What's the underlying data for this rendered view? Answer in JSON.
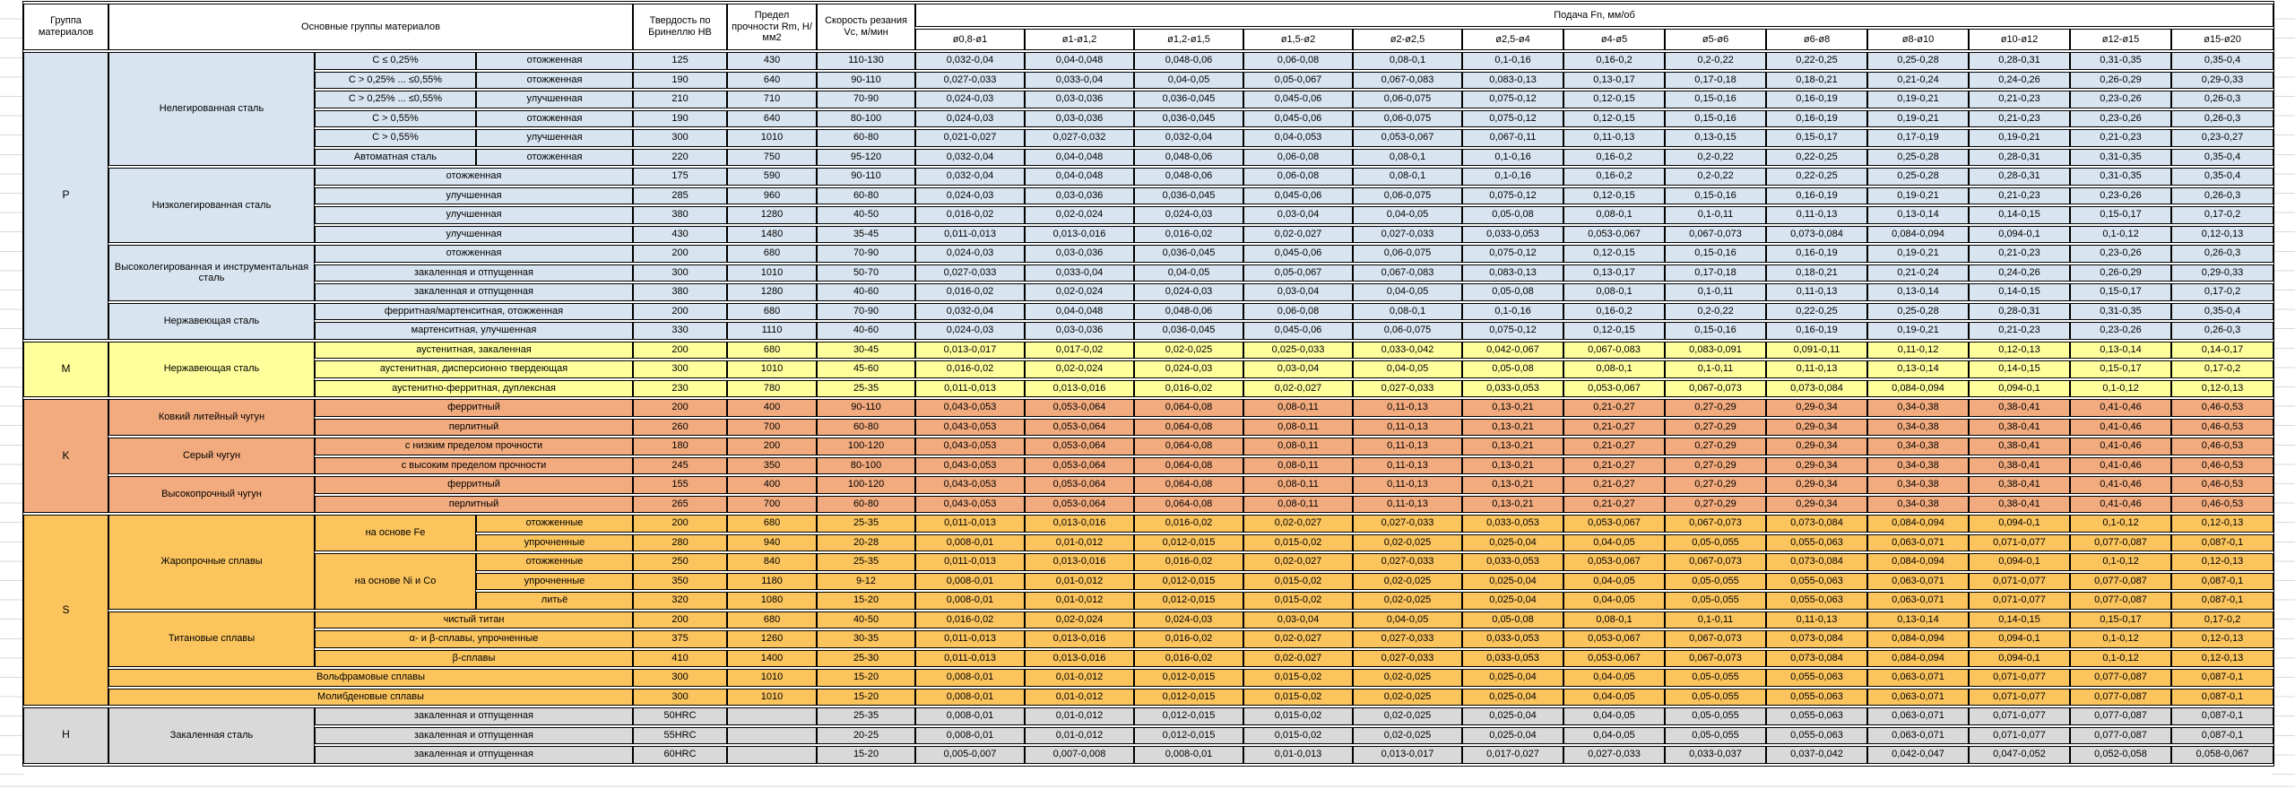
{
  "table": {
    "headers": {
      "group": "Группа материалов",
      "materials": "Основные группы материалов",
      "hardness": "Твердость по Бринеллю HB",
      "strength": "Предел прочности Rm, Н/мм2",
      "speed": "Скорость резания Vc, м/мин",
      "feed": "Подача Fn, мм/об",
      "diameters": [
        "ø0,8-ø1",
        "ø1-ø1,2",
        "ø1,2-ø1,5",
        "ø1,5-ø2",
        "ø2-ø2,5",
        "ø2,5-ø4",
        "ø4-ø5",
        "ø5-ø6",
        "ø6-ø8",
        "ø8-ø10",
        "ø10-ø12",
        "ø12-ø15",
        "ø15-ø20"
      ]
    },
    "feed_profiles": {
      "A": [
        "0,032-0,04",
        "0,04-0,048",
        "0,048-0,06",
        "0,06-0,08",
        "0,08-0,1",
        "0,1-0,16",
        "0,16-0,2",
        "0,2-0,22",
        "0,22-0,25",
        "0,25-0,28",
        "0,28-0,31",
        "0,31-0,35",
        "0,35-0,4"
      ],
      "B": [
        "0,027-0,033",
        "0,033-0,04",
        "0,04-0,05",
        "0,05-0,067",
        "0,067-0,083",
        "0,083-0,13",
        "0,13-0,17",
        "0,17-0,18",
        "0,18-0,21",
        "0,21-0,24",
        "0,24-0,26",
        "0,26-0,29",
        "0,29-0,33"
      ],
      "C": [
        "0,024-0,03",
        "0,03-0,036",
        "0,036-0,045",
        "0,045-0,06",
        "0,06-0,075",
        "0,075-0,12",
        "0,12-0,15",
        "0,15-0,16",
        "0,16-0,19",
        "0,19-0,21",
        "0,21-0,23",
        "0,23-0,26",
        "0,26-0,3"
      ],
      "D": [
        "0,021-0,027",
        "0,027-0,032",
        "0,032-0,04",
        "0,04-0,053",
        "0,053-0,067",
        "0,067-0,11",
        "0,11-0,13",
        "0,13-0,15",
        "0,15-0,17",
        "0,17-0,19",
        "0,19-0,21",
        "0,21-0,23",
        "0,23-0,27"
      ],
      "E": [
        "0,016-0,02",
        "0,02-0,024",
        "0,024-0,03",
        "0,03-0,04",
        "0,04-0,05",
        "0,05-0,08",
        "0,08-0,1",
        "0,1-0,11",
        "0,11-0,13",
        "0,13-0,14",
        "0,14-0,15",
        "0,15-0,17",
        "0,17-0,2"
      ],
      "F": [
        "0,011-0,013",
        "0,013-0,016",
        "0,016-0,02",
        "0,02-0,027",
        "0,027-0,033",
        "0,033-0,053",
        "0,053-0,067",
        "0,067-0,073",
        "0,073-0,084",
        "0,084-0,094",
        "0,094-0,1",
        "0,1-0,12",
        "0,12-0,13"
      ],
      "G": [
        "0,013-0,017",
        "0,017-0,02",
        "0,02-0,025",
        "0,025-0,033",
        "0,033-0,042",
        "0,042-0,067",
        "0,067-0,083",
        "0,083-0,091",
        "0,091-0,11",
        "0,11-0,12",
        "0,12-0,13",
        "0,13-0,14",
        "0,14-0,17"
      ],
      "K": [
        "0,043-0,053",
        "0,053-0,064",
        "0,064-0,08",
        "0,08-0,11",
        "0,11-0,13",
        "0,13-0,21",
        "0,21-0,27",
        "0,27-0,29",
        "0,29-0,34",
        "0,34-0,38",
        "0,38-0,41",
        "0,41-0,46",
        "0,46-0,53"
      ],
      "H": [
        "0,008-0,01",
        "0,01-0,012",
        "0,012-0,015",
        "0,015-0,02",
        "0,02-0,025",
        "0,025-0,04",
        "0,04-0,05",
        "0,05-0,055",
        "0,055-0,063",
        "0,063-0,071",
        "0,071-0,077",
        "0,077-0,087",
        "0,087-0,1"
      ],
      "Z": [
        "0,005-0,007",
        "0,007-0,008",
        "0,008-0,01",
        "0,01-0,013",
        "0,013-0,017",
        "0,017-0,027",
        "0,027-0,033",
        "0,033-0,037",
        "0,037-0,042",
        "0,042-0,047",
        "0,047-0,052",
        "0,052-0,058",
        "0,058-0,067"
      ]
    },
    "groups": [
      {
        "code": "P",
        "color": "#D8E4F0",
        "blocks": [
          {
            "name": "Нелегированная сталь",
            "rows": [
              {
                "cells": [
                  {
                    "t": "C ≤ 0,25%"
                  },
                  {
                    "t": "отожженная"
                  }
                ],
                "hb": "125",
                "rm": "430",
                "vc": "110-130",
                "feed": "A"
              },
              {
                "cells": [
                  {
                    "t": "C > 0,25% ... ≤0,55%"
                  },
                  {
                    "t": "отожженная"
                  }
                ],
                "hb": "190",
                "rm": "640",
                "vc": "90-110",
                "feed": "B"
              },
              {
                "cells": [
                  {
                    "t": "C > 0,25% ... ≤0,55%"
                  },
                  {
                    "t": "улучшенная"
                  }
                ],
                "hb": "210",
                "rm": "710",
                "vc": "70-90",
                "feed": "C"
              },
              {
                "cells": [
                  {
                    "t": "C > 0,55%"
                  },
                  {
                    "t": "отожженная"
                  }
                ],
                "hb": "190",
                "rm": "640",
                "vc": "80-100",
                "feed": "C"
              },
              {
                "cells": [
                  {
                    "t": "C > 0,55%"
                  },
                  {
                    "t": "улучшенная"
                  }
                ],
                "hb": "300",
                "rm": "1010",
                "vc": "60-80",
                "feed": "D"
              },
              {
                "cells": [
                  {
                    "t": "Автоматная сталь"
                  },
                  {
                    "t": "отожженная"
                  }
                ],
                "hb": "220",
                "rm": "750",
                "vc": "95-120",
                "feed": "A"
              }
            ]
          },
          {
            "name": "Низколегированная сталь",
            "rows": [
              {
                "cells": [
                  {
                    "t": "отожженная",
                    "cs": 2
                  }
                ],
                "hb": "175",
                "rm": "590",
                "vc": "90-110",
                "feed": "A"
              },
              {
                "cells": [
                  {
                    "t": "улучшенная",
                    "cs": 2
                  }
                ],
                "hb": "285",
                "rm": "960",
                "vc": "60-80",
                "feed": "C"
              },
              {
                "cells": [
                  {
                    "t": "улучшенная",
                    "cs": 2
                  }
                ],
                "hb": "380",
                "rm": "1280",
                "vc": "40-50",
                "feed": "E"
              },
              {
                "cells": [
                  {
                    "t": "улучшенная",
                    "cs": 2
                  }
                ],
                "hb": "430",
                "rm": "1480",
                "vc": "35-45",
                "feed": "F"
              }
            ]
          },
          {
            "name": "Высоколегированная и инструментальная сталь",
            "rows": [
              {
                "cells": [
                  {
                    "t": "отожженная",
                    "cs": 2
                  }
                ],
                "hb": "200",
                "rm": "680",
                "vc": "70-90",
                "feed": "C"
              },
              {
                "cells": [
                  {
                    "t": "закаленная и отпущенная",
                    "cs": 2
                  }
                ],
                "hb": "300",
                "rm": "1010",
                "vc": "50-70",
                "feed": "B"
              },
              {
                "cells": [
                  {
                    "t": "закаленная и отпущенная",
                    "cs": 2
                  }
                ],
                "hb": "380",
                "rm": "1280",
                "vc": "40-60",
                "feed": "E"
              }
            ]
          },
          {
            "name": "Нержавеющая сталь",
            "rows": [
              {
                "cells": [
                  {
                    "t": "ферритная/мартенситная, отожженная",
                    "cs": 2
                  }
                ],
                "hb": "200",
                "rm": "680",
                "vc": "70-90",
                "feed": "A"
              },
              {
                "cells": [
                  {
                    "t": "мартенситная, улучшенная",
                    "cs": 2
                  }
                ],
                "hb": "330",
                "rm": "1110",
                "vc": "40-60",
                "feed": "C"
              }
            ]
          }
        ]
      },
      {
        "code": "M",
        "color": "#FFFF9C",
        "blocks": [
          {
            "name": "Нержавеющая сталь",
            "rows": [
              {
                "cells": [
                  {
                    "t": "аустенитная, закаленная",
                    "cs": 2
                  }
                ],
                "hb": "200",
                "rm": "680",
                "vc": "30-45",
                "feed": "G"
              },
              {
                "cells": [
                  {
                    "t": "аустенитная, дисперсионно твердеющая",
                    "cs": 2
                  }
                ],
                "hb": "300",
                "rm": "1010",
                "vc": "45-60",
                "feed": "E"
              },
              {
                "cells": [
                  {
                    "t": "аустенитно-ферритная, дуплексная",
                    "cs": 2
                  }
                ],
                "hb": "230",
                "rm": "780",
                "vc": "25-35",
                "feed": "F"
              }
            ]
          }
        ]
      },
      {
        "code": "K",
        "color": "#F2AB7E",
        "blocks": [
          {
            "name": "Ковкий литейный чугун",
            "rows": [
              {
                "cells": [
                  {
                    "t": "ферритный",
                    "cs": 2
                  }
                ],
                "hb": "200",
                "rm": "400",
                "vc": "90-110",
                "feed": "K"
              },
              {
                "cells": [
                  {
                    "t": "перлитный",
                    "cs": 2
                  }
                ],
                "hb": "260",
                "rm": "700",
                "vc": "60-80",
                "feed": "K"
              }
            ]
          },
          {
            "name": "Серый чугун",
            "rows": [
              {
                "cells": [
                  {
                    "t": "с низким пределом прочности",
                    "cs": 2
                  }
                ],
                "hb": "180",
                "rm": "200",
                "vc": "100-120",
                "feed": "K"
              },
              {
                "cells": [
                  {
                    "t": "с высоким пределом прочности",
                    "cs": 2
                  }
                ],
                "hb": "245",
                "rm": "350",
                "vc": "80-100",
                "feed": "K"
              }
            ]
          },
          {
            "name": "Высокопрочный чугун",
            "rows": [
              {
                "cells": [
                  {
                    "t": "ферритный",
                    "cs": 2
                  }
                ],
                "hb": "155",
                "rm": "400",
                "vc": "100-120",
                "feed": "K"
              },
              {
                "cells": [
                  {
                    "t": "перлитный",
                    "cs": 2
                  }
                ],
                "hb": "265",
                "rm": "700",
                "vc": "60-80",
                "feed": "K"
              }
            ]
          }
        ]
      },
      {
        "code": "S",
        "color": "#FBC45D",
        "blocks": [
          {
            "name": "Жаропрочные сплавы",
            "rows": [
              {
                "cells": [
                  {
                    "t": "на основе Fe",
                    "rs": 2
                  },
                  {
                    "t": "отожженные"
                  }
                ],
                "hb": "200",
                "rm": "680",
                "vc": "25-35",
                "feed": "F"
              },
              {
                "cells": [
                  {
                    "t": "упрочненные"
                  }
                ],
                "hb": "280",
                "rm": "940",
                "vc": "20-28",
                "feed": "H"
              },
              {
                "cells": [
                  {
                    "t": "на основе Ni и Co",
                    "rs": 3
                  },
                  {
                    "t": "отожженные"
                  }
                ],
                "hb": "250",
                "rm": "840",
                "vc": "25-35",
                "feed": "F"
              },
              {
                "cells": [
                  {
                    "t": "упрочненные"
                  }
                ],
                "hb": "350",
                "rm": "1180",
                "vc": "9-12",
                "feed": "H"
              },
              {
                "cells": [
                  {
                    "t": "литьё"
                  }
                ],
                "hb": "320",
                "rm": "1080",
                "vc": "15-20",
                "feed": "H"
              }
            ]
          },
          {
            "name": "Титановые сплавы",
            "rows": [
              {
                "cells": [
                  {
                    "t": "чистый титан",
                    "cs": 2
                  }
                ],
                "hb": "200",
                "rm": "680",
                "vc": "40-50",
                "feed": "E"
              },
              {
                "cells": [
                  {
                    "t": "α- и β-сплавы, упрочненные",
                    "cs": 2
                  }
                ],
                "hb": "375",
                "rm": "1260",
                "vc": "30-35",
                "feed": "F"
              },
              {
                "cells": [
                  {
                    "t": "β-сплавы",
                    "cs": 2
                  }
                ],
                "hb": "410",
                "rm": "1400",
                "vc": "25-30",
                "feed": "F"
              }
            ]
          },
          {
            "name": "Вольфрамовые сплавы",
            "name_cs": 3,
            "rows": [
              {
                "cells": [],
                "hb": "300",
                "rm": "1010",
                "vc": "15-20",
                "feed": "H"
              }
            ]
          },
          {
            "name": "Молибденовые сплавы",
            "name_cs": 3,
            "rows": [
              {
                "cells": [],
                "hb": "300",
                "rm": "1010",
                "vc": "15-20",
                "feed": "H"
              }
            ]
          }
        ]
      },
      {
        "code": "H",
        "color": "#D9D9D9",
        "blocks": [
          {
            "name": "Закаленная сталь",
            "rows": [
              {
                "cells": [
                  {
                    "t": "закаленная и отпущенная",
                    "cs": 2
                  }
                ],
                "hb": "50HRC",
                "rm": "",
                "vc": "25-35",
                "feed": "H"
              },
              {
                "cells": [
                  {
                    "t": "закаленная и отпущенная",
                    "cs": 2
                  }
                ],
                "hb": "55HRC",
                "rm": "",
                "vc": "20-25",
                "feed": "H"
              },
              {
                "cells": [
                  {
                    "t": "закаленная и отпущенная",
                    "cs": 2
                  }
                ],
                "hb": "60HRC",
                "rm": "",
                "vc": "15-20",
                "feed": "Z"
              }
            ]
          }
        ]
      }
    ]
  }
}
